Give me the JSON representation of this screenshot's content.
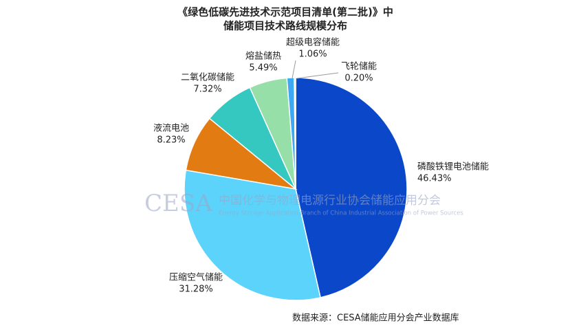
{
  "chart_data": {
    "type": "pie",
    "title": [
      "《绿色低碳先进技术示范项目清单(第二批)》中",
      "储能项目技术路线规模分布"
    ],
    "categories": [
      "磷酸铁锂电池储能",
      "压缩空气储能",
      "液流电池",
      "二氧化碳储能",
      "熔盐储热",
      "超级电容储能",
      "飞轮储能"
    ],
    "values": [
      46.43,
      31.28,
      8.23,
      7.32,
      5.49,
      1.06,
      0.2
    ],
    "value_labels": [
      "46.43%",
      "31.28%",
      "8.23%",
      "7.32%",
      "5.49%",
      "1.06%",
      "0.20%"
    ],
    "colors": [
      "#0a47c9",
      "#5cd3fb",
      "#e27b12",
      "#34c8c0",
      "#97dfa9",
      "#3fa8f3",
      "#bfc4cc"
    ],
    "watermark": [
      "CESA",
      "中国化学与物理电源行业协会储能应用分会",
      "Energy Storage Application Branch of China Industrial Association of Power Sources"
    ],
    "source": "数据来源：CESA储能应用分会产业数据库"
  }
}
